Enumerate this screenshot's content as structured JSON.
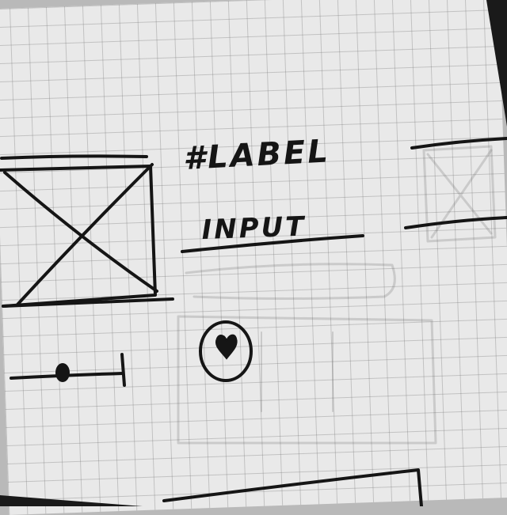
{
  "wireframe": {
    "label_text": "#LABEL",
    "input_text": "INPUT",
    "image_placeholder": {
      "type": "image-placeholder",
      "icon": "crossed-box"
    },
    "favorite_button": {
      "icon": "heart-icon"
    },
    "slider": {
      "value": 0.4
    },
    "colors": {
      "ink": "#151515",
      "paper": "#e9e9e9",
      "grid": "#8a8a8a"
    }
  }
}
